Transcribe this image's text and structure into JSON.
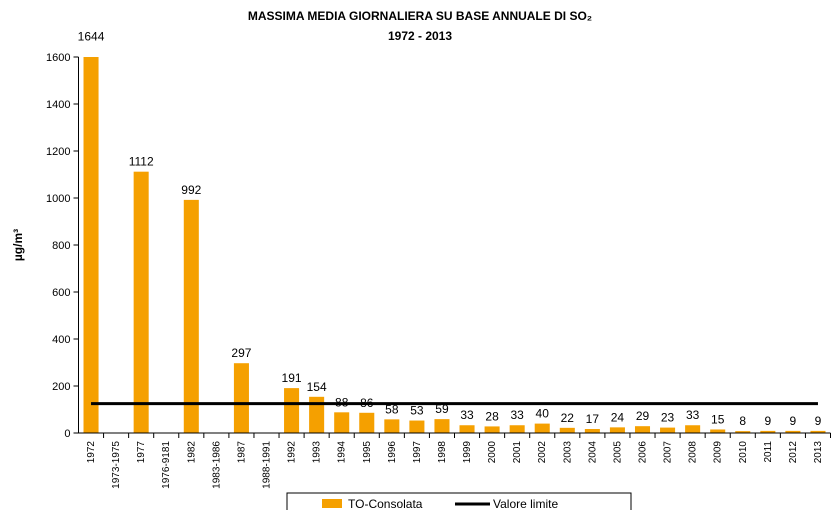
{
  "chart_data": {
    "type": "bar",
    "title": "MASSIMA MEDIA GIORNALIERA SU BASE ANNUALE DI SO₂",
    "subtitle": "1972 - 2013",
    "y_label": "µg/m³",
    "categories": [
      "1972",
      "1973-1975",
      "1977",
      "1976-9181",
      "1982",
      "1983-1986",
      "1987",
      "1988-1991",
      "1992",
      "1993",
      "1994",
      "1995",
      "1996",
      "1997",
      "1998",
      "1999",
      "2000",
      "2001",
      "2002",
      "2003",
      "2004",
      "2005",
      "2006",
      "2007",
      "2008",
      "2009",
      "2010",
      "2011",
      "2012",
      "2013"
    ],
    "series": [
      {
        "name": "TO-Consolata",
        "color": "#f5a000",
        "type": "bar",
        "values": [
          1644,
          null,
          1112,
          null,
          992,
          null,
          297,
          null,
          191,
          154,
          88,
          86,
          58,
          53,
          59,
          33,
          28,
          33,
          40,
          22,
          17,
          24,
          29,
          23,
          33,
          15,
          8,
          9,
          9,
          9
        ]
      },
      {
        "name": "Valore limite",
        "color": "#000000",
        "type": "line",
        "values": [
          125,
          125,
          125,
          125,
          125,
          125,
          125,
          125,
          125,
          125,
          125,
          125,
          125,
          125,
          125,
          125,
          125,
          125,
          125,
          125,
          125,
          125,
          125,
          125,
          125,
          125,
          125,
          125,
          125,
          125
        ]
      }
    ],
    "ylim": [
      0,
      1600
    ],
    "yticks": [
      0,
      200,
      400,
      600,
      800,
      1000,
      1200,
      1400,
      1600
    ],
    "legend": "bottom"
  }
}
